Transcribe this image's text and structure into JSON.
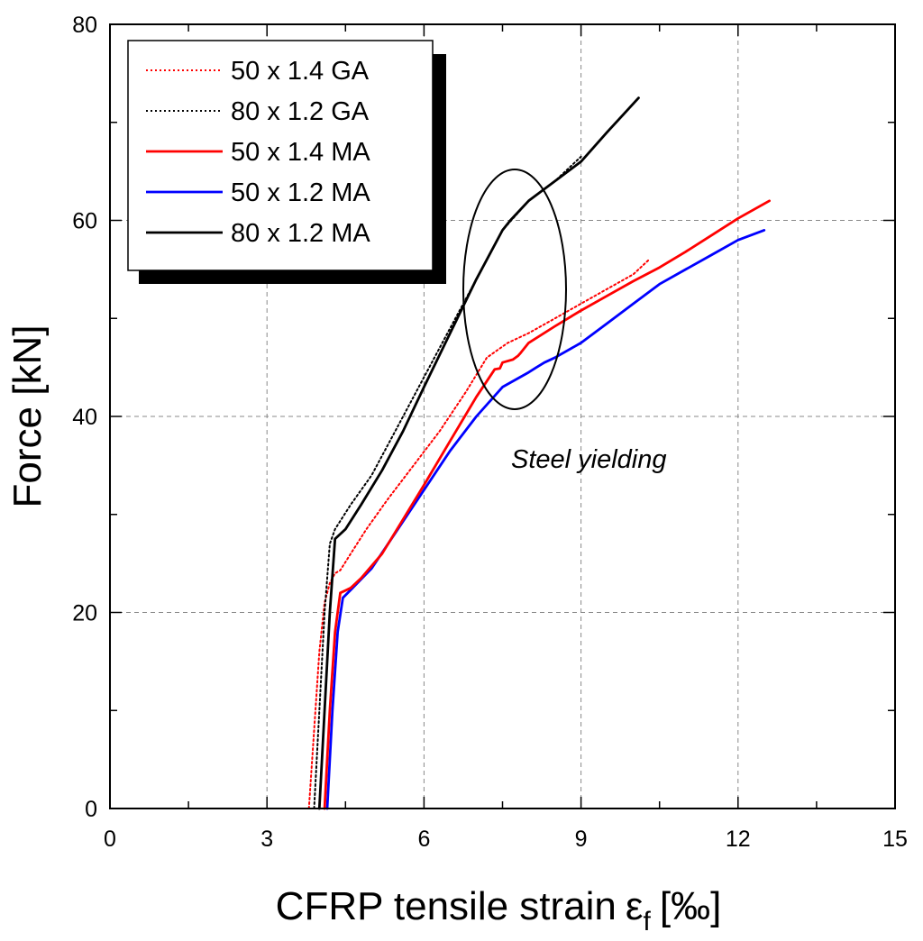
{
  "chart_data": {
    "type": "line",
    "xlabel": "CFRP tensile strain",
    "xlabel_symbol": "ε",
    "xlabel_sub": "f",
    "xlabel_unit": "[‰]",
    "ylabel": "Force [kN]",
    "xlim": [
      0,
      15
    ],
    "ylim": [
      0,
      80
    ],
    "x_major_ticks": [
      "0",
      "3",
      "6",
      "9",
      "12",
      "15"
    ],
    "y_major_ticks": [
      "0",
      "20",
      "40",
      "60",
      "80"
    ],
    "grid": true,
    "legend_position": "top-left",
    "annotation": "Steel yielding",
    "series": [
      {
        "name": "50 x 1.4 GA",
        "color": "#ff0000",
        "style": "dotted",
        "x": [
          3.8,
          3.9,
          4.0,
          4.1,
          4.2,
          4.3,
          4.4,
          4.6,
          4.9,
          5.3,
          5.8,
          6.3,
          6.8,
          7.2,
          7.6,
          8.0,
          8.5,
          9.0,
          9.5,
          10.0,
          10.3
        ],
        "y": [
          0,
          8,
          16,
          21,
          23,
          24,
          24.3,
          26,
          28.5,
          31.5,
          35,
          38.5,
          42.5,
          46,
          47.5,
          48.5,
          50,
          51.5,
          53,
          54.5,
          56
        ]
      },
      {
        "name": "80 x 1.2 GA",
        "color": "#000000",
        "style": "dotted",
        "x": [
          3.9,
          4.0,
          4.1,
          4.2,
          4.3,
          4.6,
          5.0,
          5.5,
          6.0,
          6.5,
          7.0,
          7.5,
          8.0,
          8.5,
          9.0
        ],
        "y": [
          0,
          10,
          20,
          27,
          28.5,
          31,
          34,
          39,
          44,
          49,
          54,
          59,
          62,
          64,
          66.5
        ]
      },
      {
        "name": "50 x 1.4 MA",
        "color": "#ff0000",
        "style": "solid",
        "x": [
          4.1,
          4.2,
          4.3,
          4.4,
          4.6,
          4.8,
          5.2,
          5.6,
          6.0,
          6.5,
          7.0,
          7.35,
          7.45,
          7.5,
          7.7,
          7.8,
          7.85,
          8.0,
          8.5,
          9.0,
          9.5,
          10.0,
          10.5,
          11.0,
          11.5,
          12.0,
          12.6
        ],
        "y": [
          0,
          10,
          18,
          22,
          22.5,
          23.5,
          26,
          29.5,
          33,
          37.5,
          42,
          44.8,
          44.9,
          45.5,
          45.8,
          46.2,
          46.5,
          47.5,
          49.2,
          50.8,
          52.3,
          53.8,
          55.2,
          56.8,
          58.5,
          60.2,
          62
        ]
      },
      {
        "name": "50 x 1.2 MA",
        "color": "#0000ff",
        "style": "solid",
        "x": [
          4.15,
          4.25,
          4.35,
          4.45,
          4.6,
          5.0,
          5.5,
          6.0,
          6.5,
          7.0,
          7.5,
          8.0,
          8.15,
          8.3,
          8.5,
          9.0,
          9.5,
          10.0,
          10.5,
          11.0,
          11.5,
          12.0,
          12.5
        ],
        "y": [
          0,
          10,
          18,
          21.5,
          22.3,
          24.5,
          28.5,
          32.5,
          36.5,
          40,
          43,
          44.5,
          45,
          45.5,
          46,
          47.5,
          49.5,
          51.5,
          53.5,
          55,
          56.5,
          58,
          59
        ]
      },
      {
        "name": "80 x 1.2 MA",
        "color": "#000000",
        "style": "solid",
        "x": [
          4.0,
          4.1,
          4.2,
          4.3,
          4.4,
          4.5,
          4.8,
          5.2,
          5.6,
          6.0,
          6.5,
          7.0,
          7.5,
          7.65,
          8.0,
          8.5,
          9.0,
          9.5,
          10.1
        ],
        "y": [
          0,
          10,
          20,
          27.5,
          28,
          28.5,
          31,
          34.5,
          38.5,
          43,
          48.5,
          54,
          59,
          60,
          62,
          64,
          66,
          69,
          72.5
        ]
      }
    ]
  }
}
